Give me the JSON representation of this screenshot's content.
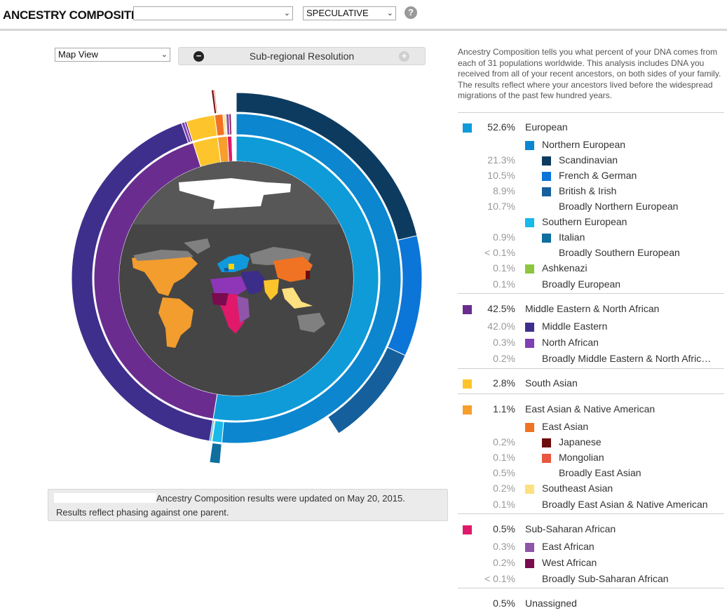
{
  "header": {
    "title": "ANCESTRY COMPOSITION",
    "profile_value": "",
    "mode_value": "SPECULATIVE",
    "help_icon": "question-circle-icon"
  },
  "controls": {
    "view_value": "Map View",
    "resolution_label": "Sub-regional Resolution"
  },
  "update": {
    "line1": "Ancestry Composition results were updated on May 20, 2015.",
    "line2": "Results reflect phasing against one parent."
  },
  "intro": "Ancestry Composition tells you what percent of your DNA comes from each of 31 populations worldwide. This analysis includes DNA you received from all of your recent ancestors, on both sides of your family. The results reflect where your ancestors lived before the widespread migrations of the past few hundred years.",
  "colors": {
    "european": "#0e9bd8",
    "northern_european": "#0b86cf",
    "scandinavian": "#0d3b60",
    "french_german": "#0c75d8",
    "british_irish": "#155f9c",
    "southern_european": "#19b9ea",
    "italian": "#0f6f9e",
    "ashkenazi": "#8cc63e",
    "mena": "#6a2d8f",
    "middle_eastern": "#3f2f8c",
    "north_african": "#7f3fb5",
    "south_asian": "#fdc52b",
    "east_asian_native": "#f79e2d",
    "east_asian": "#f07324",
    "japanese": "#6e0d0d",
    "mongolian": "#e9573f",
    "southeast_asian": "#fde07f",
    "sub_saharan": "#e0196b",
    "east_african": "#8e55a8",
    "west_african": "#7a0b4e"
  },
  "legend": [
    {
      "pct": "52.6%",
      "label": "European",
      "level": 0,
      "color": "#0e9bd8"
    },
    {
      "pct": "",
      "label": "Northern European",
      "level": 1,
      "color": "#0b86cf"
    },
    {
      "pct": "21.3%",
      "label": "Scandinavian",
      "level": 2,
      "color": "#0d3b60"
    },
    {
      "pct": "10.5%",
      "label": "French & German",
      "level": 2,
      "color": "#0c75d8"
    },
    {
      "pct": "8.9%",
      "label": "British & Irish",
      "level": 2,
      "color": "#155f9c"
    },
    {
      "pct": "10.7%",
      "label": "Broadly Northern European",
      "level": 2,
      "color": ""
    },
    {
      "pct": "",
      "label": "Southern European",
      "level": 1,
      "color": "#19b9ea"
    },
    {
      "pct": "0.9%",
      "label": "Italian",
      "level": 2,
      "color": "#0f6f9e"
    },
    {
      "pct": "< 0.1%",
      "label": "Broadly Southern European",
      "level": 2,
      "color": ""
    },
    {
      "pct": "0.1%",
      "label": "Ashkenazi",
      "level": 1,
      "color": "#8cc63e"
    },
    {
      "pct": "0.1%",
      "label": "Broadly European",
      "level": 1,
      "color": ""
    },
    {
      "pct": "42.5%",
      "label": "Middle Eastern & North African",
      "level": 0,
      "color": "#6a2d8f"
    },
    {
      "pct": "42.0%",
      "label": "Middle Eastern",
      "level": 1,
      "color": "#3f2f8c"
    },
    {
      "pct": "0.3%",
      "label": "North African",
      "level": 1,
      "color": "#7f3fb5"
    },
    {
      "pct": "0.2%",
      "label": "Broadly Middle Eastern & North Afric…",
      "level": 1,
      "color": ""
    },
    {
      "pct": "2.8%",
      "label": "South Asian",
      "level": 0,
      "color": "#fdc52b"
    },
    {
      "pct": "1.1%",
      "label": "East Asian & Native American",
      "level": 0,
      "color": "#f79e2d"
    },
    {
      "pct": "",
      "label": "East Asian",
      "level": 1,
      "color": "#f07324"
    },
    {
      "pct": "0.2%",
      "label": "Japanese",
      "level": 2,
      "color": "#6e0d0d"
    },
    {
      "pct": "0.1%",
      "label": "Mongolian",
      "level": 2,
      "color": "#e9573f"
    },
    {
      "pct": "0.5%",
      "label": "Broadly East Asian",
      "level": 2,
      "color": ""
    },
    {
      "pct": "0.2%",
      "label": "Southeast Asian",
      "level": 1,
      "color": "#fde07f"
    },
    {
      "pct": "0.1%",
      "label": "Broadly East Asian & Native American",
      "level": 1,
      "color": ""
    },
    {
      "pct": "0.5%",
      "label": "Sub-Saharan African",
      "level": 0,
      "color": "#e0196b"
    },
    {
      "pct": "0.3%",
      "label": "East African",
      "level": 1,
      "color": "#8e55a8"
    },
    {
      "pct": "0.2%",
      "label": "West African",
      "level": 1,
      "color": "#7a0b4e"
    },
    {
      "pct": "< 0.1%",
      "label": "Broadly Sub-Saharan African",
      "level": 1,
      "color": ""
    },
    {
      "pct": "0.5%",
      "label": "Unassigned",
      "level": 0,
      "color": ""
    }
  ]
}
